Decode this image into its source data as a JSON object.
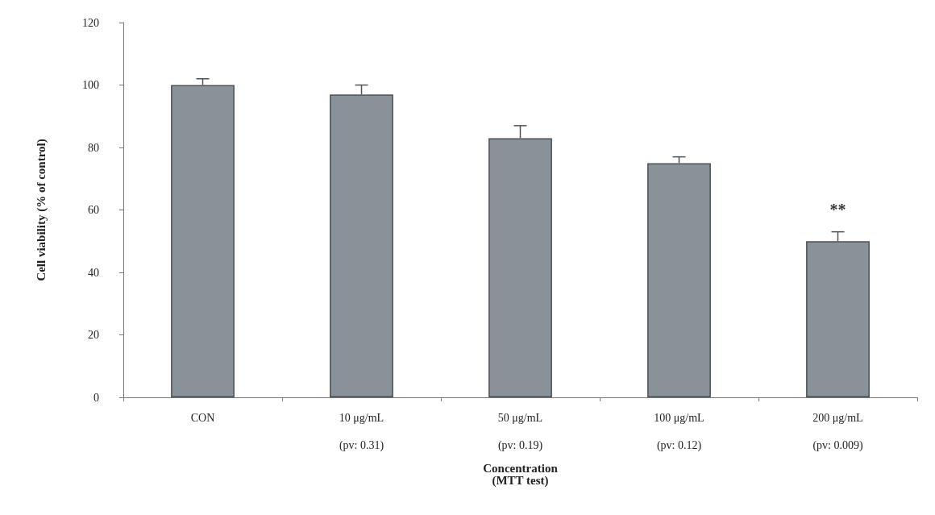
{
  "chart_data": {
    "type": "bar",
    "xlabel": "Concentration\n(MTT test)",
    "ylabel": "Cell viability (% of control)",
    "categories": [
      "CON",
      "10 μg/mL\n(pv: 0.31)",
      "50 μg/mL\n(pv: 0.19)",
      "100 μg/mL\n(pv: 0.12)",
      "200 μg/mL\n(pv: 0.009)"
    ],
    "values": [
      100,
      97,
      83,
      75,
      50
    ],
    "errors": [
      [
        100,
        102
      ],
      [
        97,
        100
      ],
      [
        83,
        87
      ],
      [
        75,
        77
      ],
      [
        50,
        53
      ]
    ],
    "color": "#8a9299",
    "ylim": [
      0,
      120
    ],
    "yticks": [
      0,
      20,
      40,
      60,
      80,
      100,
      120
    ],
    "grid": false,
    "annotations": [
      "**"
    ]
  }
}
